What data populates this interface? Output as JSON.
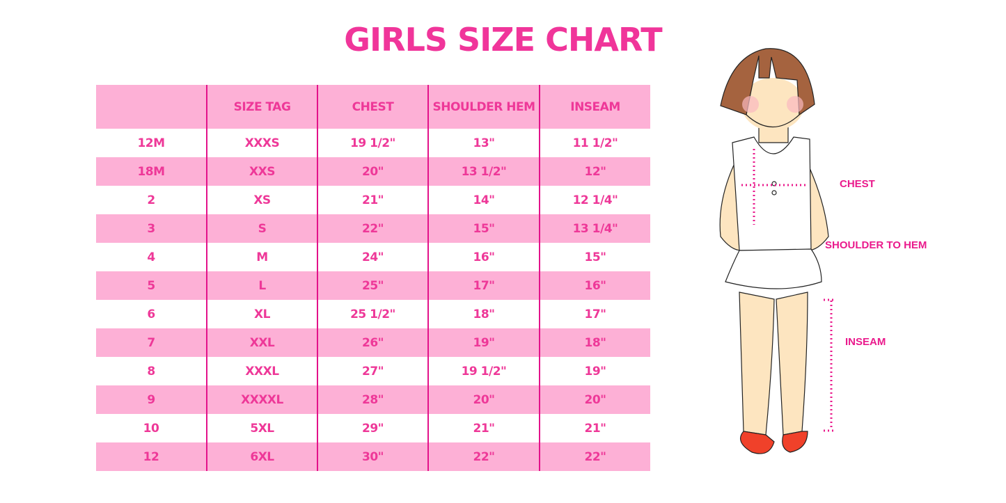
{
  "title": "GIRLS SIZE CHART",
  "colors": {
    "accent": "#f0359a",
    "stripe": "#fdb0d6",
    "divider": "#e3128a"
  },
  "table": {
    "headers": [
      "",
      "SIZE TAG",
      "CHEST",
      "SHOULDER HEM",
      "INSEAM"
    ],
    "rows": [
      [
        "12M",
        "XXXS",
        "19 1/2\"",
        "13\"",
        "11 1/2\""
      ],
      [
        "18M",
        "XXS",
        "20\"",
        "13 1/2\"",
        "12\""
      ],
      [
        "2",
        "XS",
        "21\"",
        "14\"",
        "12 1/4\""
      ],
      [
        "3",
        "S",
        "22\"",
        "15\"",
        "13 1/4\""
      ],
      [
        "4",
        "M",
        "24\"",
        "16\"",
        "15\""
      ],
      [
        "5",
        "L",
        "25\"",
        "17\"",
        "16\""
      ],
      [
        "6",
        "XL",
        "25 1/2\"",
        "18\"",
        "17\""
      ],
      [
        "7",
        "XXL",
        "26\"",
        "19\"",
        "18\""
      ],
      [
        "8",
        "XXXL",
        "27\"",
        "19 1/2\"",
        "19\""
      ],
      [
        "9",
        "XXXXL",
        "28\"",
        "20\"",
        "20\""
      ],
      [
        "10",
        "5XL",
        "29\"",
        "21\"",
        "21\""
      ],
      [
        "12",
        "6XL",
        "30\"",
        "22\"",
        "22\""
      ]
    ]
  },
  "illustration": {
    "labels": {
      "chest": "CHEST",
      "shoulder_to_hem": "SHOULDER TO HEM",
      "inseam": "INSEAM"
    }
  }
}
